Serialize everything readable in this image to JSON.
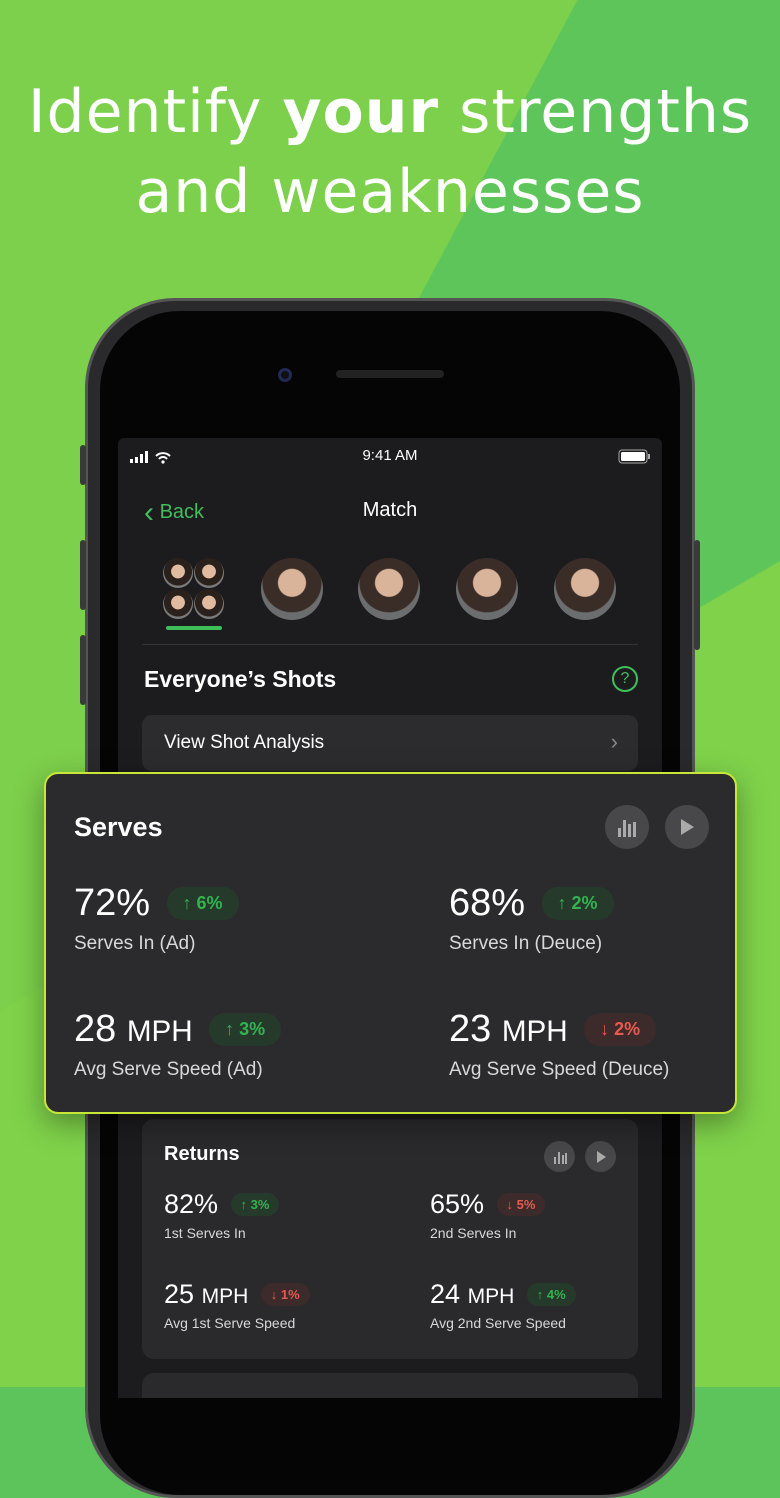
{
  "headline": {
    "line1_pre": "Identify ",
    "line1_bold": "your",
    "line1_post": " strengths",
    "line2": "and weaknesses"
  },
  "status": {
    "time": "9:41 AM"
  },
  "nav": {
    "back": "Back",
    "title": "Match"
  },
  "section": {
    "title": "Everyone’s Shots",
    "help": "?",
    "view_label": "View Shot Analysis",
    "chevron": "›"
  },
  "colors": {
    "accent": "#3fbf5b",
    "up": "#32b350",
    "down": "#e85a4f",
    "highlight_border": "#c8e637"
  },
  "serves": {
    "title": "Serves",
    "icons": [
      "bar-chart-icon",
      "play-icon"
    ],
    "metrics": [
      {
        "value": "72%",
        "unit": "",
        "change": "↑ 6%",
        "dir": "up",
        "label": "Serves In (Ad)"
      },
      {
        "value": "68%",
        "unit": "",
        "change": "↑ 2%",
        "dir": "up",
        "label": "Serves In (Deuce)"
      },
      {
        "value": "28",
        "unit": "MPH",
        "change": "↑ 3%",
        "dir": "up",
        "label": "Avg Serve Speed (Ad)"
      },
      {
        "value": "23",
        "unit": "MPH",
        "change": "↓ 2%",
        "dir": "down",
        "label": "Avg Serve Speed (Deuce)"
      }
    ]
  },
  "returns": {
    "title": "Returns",
    "metrics": [
      {
        "value": "82%",
        "unit": "",
        "change": "↑ 3%",
        "dir": "up",
        "label": "1st Serves In"
      },
      {
        "value": "65%",
        "unit": "",
        "change": "↓ 5%",
        "dir": "down",
        "label": "2nd Serves In"
      },
      {
        "value": "25",
        "unit": "MPH",
        "change": "↓ 1%",
        "dir": "down",
        "label": "Avg 1st Serve Speed"
      },
      {
        "value": "24",
        "unit": "MPH",
        "change": "↑ 4%",
        "dir": "up",
        "label": "Avg 2nd Serve Speed"
      }
    ]
  }
}
